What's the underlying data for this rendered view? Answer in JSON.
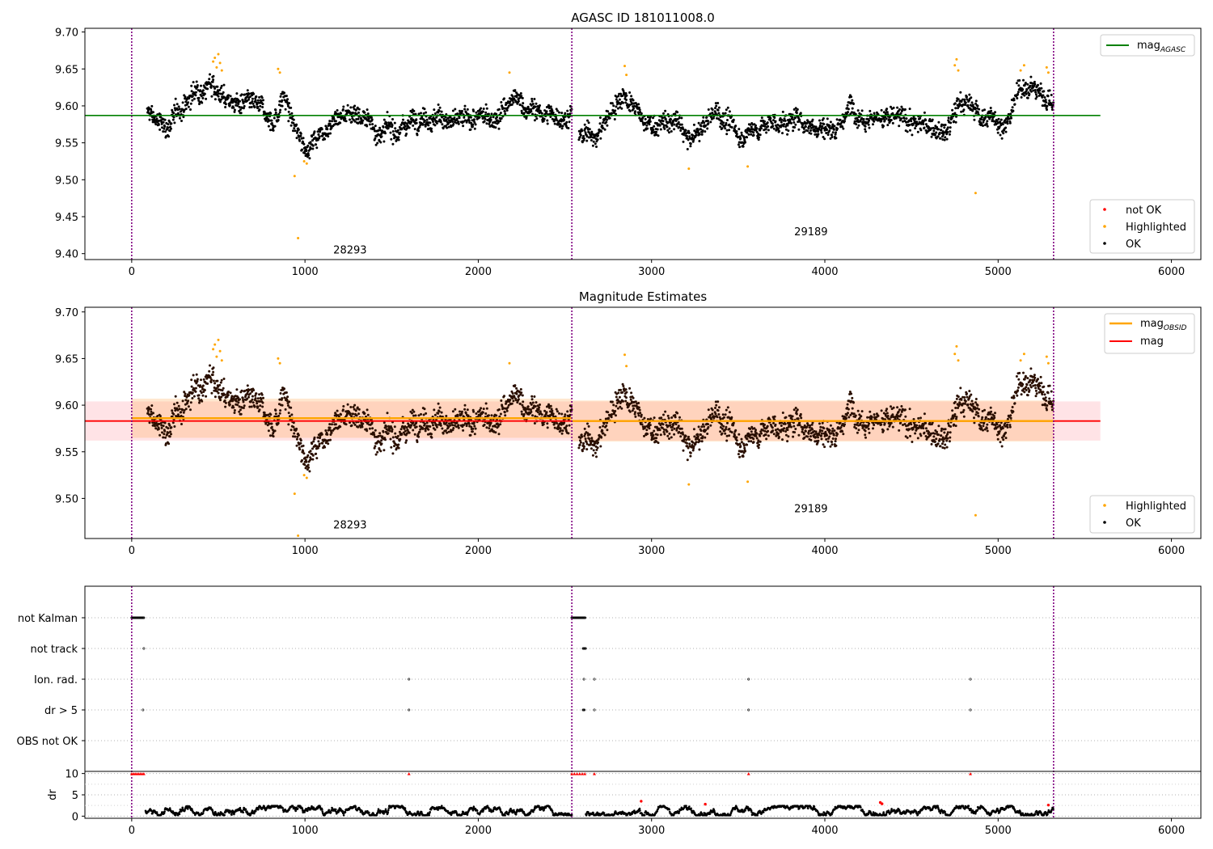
{
  "chart_data": [
    {
      "type": "scatter",
      "title": "AGASC ID 181011008.0",
      "xlim": [
        -270,
        6170
      ],
      "ylim": [
        9.392,
        9.705
      ],
      "xticks": [
        0,
        1000,
        2000,
        3000,
        4000,
        5000,
        6000
      ],
      "yticks": [
        9.4,
        9.45,
        9.5,
        9.55,
        9.6,
        9.65,
        9.7
      ],
      "vlines": [
        0,
        2540,
        5320
      ],
      "obsid_labels": [
        {
          "text": "28293",
          "x": 1260,
          "y": 9.4
        },
        {
          "text": "29189",
          "x": 3920,
          "y": 9.425
        }
      ],
      "mag_agasc": {
        "value": 9.587,
        "x": [
          -270,
          5590
        ]
      },
      "series": [
        {
          "name": "not OK",
          "color": "#ff0000",
          "points": []
        },
        {
          "name": "Highlighted",
          "color": "#ffa500",
          "points": [
            [
              470,
              9.66
            ],
            [
              480,
              9.665
            ],
            [
              490,
              9.652
            ],
            [
              500,
              9.67
            ],
            [
              510,
              9.658
            ],
            [
              520,
              9.648
            ],
            [
              845,
              9.65
            ],
            [
              855,
              9.645
            ],
            [
              940,
              9.505
            ],
            [
              960,
              9.421
            ],
            [
              995,
              9.525
            ],
            [
              1010,
              9.522
            ],
            [
              2180,
              9.645
            ],
            [
              2845,
              9.654
            ],
            [
              2855,
              9.642
            ],
            [
              3215,
              9.515
            ],
            [
              3555,
              9.518
            ],
            [
              4750,
              9.655
            ],
            [
              4760,
              9.663
            ],
            [
              4770,
              9.648
            ],
            [
              4870,
              9.482
            ],
            [
              5130,
              9.648
            ],
            [
              5150,
              9.655
            ],
            [
              5280,
              9.652
            ],
            [
              5290,
              9.645
            ]
          ]
        },
        {
          "name": "OK",
          "color": "#000000"
        }
      ],
      "segments": [
        [
          90,
          9.59
        ],
        [
          200,
          9.57
        ],
        [
          350,
          9.615
        ],
        [
          460,
          9.64
        ],
        [
          540,
          9.61
        ],
        [
          700,
          9.595
        ],
        [
          820,
          9.58
        ],
        [
          880,
          9.615
        ],
        [
          950,
          9.56
        ],
        [
          1020,
          9.545
        ],
        [
          1150,
          9.585
        ],
        [
          1300,
          9.595
        ],
        [
          1450,
          9.56
        ],
        [
          1550,
          9.57
        ],
        [
          1680,
          9.595
        ],
        [
          1900,
          9.575
        ],
        [
          2050,
          9.58
        ],
        [
          2200,
          9.605
        ],
        [
          2400,
          9.585
        ],
        [
          2540,
          9.59
        ],
        [
          2580,
          9.555
        ],
        [
          2700,
          9.565
        ],
        [
          2840,
          9.62
        ],
        [
          2950,
          9.575
        ],
        [
          3150,
          9.575
        ],
        [
          3230,
          9.55
        ],
        [
          3380,
          9.595
        ],
        [
          3500,
          9.56
        ],
        [
          3650,
          9.575
        ],
        [
          3850,
          9.58
        ],
        [
          4050,
          9.57
        ],
        [
          4150,
          9.6
        ],
        [
          4350,
          9.585
        ],
        [
          4550,
          9.575
        ],
        [
          4700,
          9.56
        ],
        [
          4780,
          9.605
        ],
        [
          4900,
          9.59
        ],
        [
          5050,
          9.575
        ],
        [
          5150,
          9.63
        ],
        [
          5320,
          9.61
        ]
      ],
      "legend_upper": "top-right",
      "legend_lower": "lower-right"
    },
    {
      "type": "scatter",
      "title": "Magnitude Estimates",
      "xlim": [
        -270,
        6170
      ],
      "ylim": [
        9.457,
        9.705
      ],
      "xticks": [
        0,
        1000,
        2000,
        3000,
        4000,
        5000,
        6000
      ],
      "yticks": [
        9.5,
        9.55,
        9.6,
        9.65,
        9.7
      ],
      "vlines": [
        0,
        2540,
        5320
      ],
      "obsid_labels": [
        {
          "text": "28293",
          "x": 1260,
          "y": 9.468
        },
        {
          "text": "29189",
          "x": 3920,
          "y": 9.485
        }
      ],
      "mag": {
        "value": 9.583,
        "band": [
          9.562,
          9.604
        ],
        "x": [
          -270,
          5590
        ],
        "color": "#ff0000"
      },
      "mag_obsid": [
        {
          "x": [
            0,
            2540
          ],
          "value": 9.586,
          "band": [
            9.565,
            9.607
          ]
        },
        {
          "x": [
            2540,
            5320
          ],
          "value": 9.583,
          "band": [
            9.561,
            9.605
          ]
        }
      ],
      "series": [
        {
          "name": "Highlighted",
          "color": "#ffa500"
        },
        {
          "name": "OK",
          "color": "#000000"
        }
      ],
      "legend_upper": "top-right",
      "legend_lower": "lower-right"
    },
    {
      "type": "scatter",
      "xlim": [
        -270,
        6170
      ],
      "xticks": [
        0,
        1000,
        2000,
        3000,
        4000,
        5000,
        6000
      ],
      "vlines": [
        0,
        2540,
        5320
      ],
      "flag_rows": [
        "not Kalman",
        "not track",
        "Ion. rad.",
        "dr > 5",
        "OBS not OK"
      ],
      "flags": {
        "not Kalman": [
          [
            0,
            70
          ],
          [
            2540,
            2620
          ]
        ],
        "not track": [
          [
            70,
            72
          ],
          [
            2605,
            2620
          ]
        ],
        "Ion. rad.": [
          [
            1600,
            1602
          ],
          [
            2610,
            2612
          ],
          [
            2670,
            2672
          ],
          [
            3560,
            3562
          ],
          [
            4840,
            4842
          ]
        ],
        "dr > 5": [
          [
            65,
            67
          ],
          [
            1600,
            1602
          ],
          [
            2605,
            2612
          ],
          [
            2670,
            2672
          ],
          [
            3560,
            3562
          ],
          [
            4840,
            4842
          ]
        ],
        "OBS not OK": []
      },
      "dr": {
        "ylabel": "dr",
        "yticks": [
          0,
          5,
          10
        ],
        "ylim": [
          -0.5,
          10.5
        ],
        "clip_points": [
          [
            0,
            10
          ],
          [
            10,
            10
          ],
          [
            20,
            10
          ],
          [
            30,
            10
          ],
          [
            40,
            10
          ],
          [
            50,
            10
          ],
          [
            60,
            10
          ],
          [
            70,
            10
          ],
          [
            1600,
            10
          ],
          [
            2540,
            10
          ],
          [
            2555,
            10
          ],
          [
            2570,
            10
          ],
          [
            2585,
            10
          ],
          [
            2600,
            10
          ],
          [
            2615,
            10
          ],
          [
            2670,
            10
          ],
          [
            3560,
            10
          ],
          [
            4840,
            10
          ]
        ],
        "spikes": [
          [
            2940,
            3.5
          ],
          [
            3310,
            2.8
          ],
          [
            4320,
            3.2
          ],
          [
            4330,
            2.9
          ],
          [
            5290,
            2.6
          ]
        ],
        "gaps": [
          [
            0,
            80
          ],
          [
            2540,
            2620
          ]
        ]
      }
    }
  ]
}
